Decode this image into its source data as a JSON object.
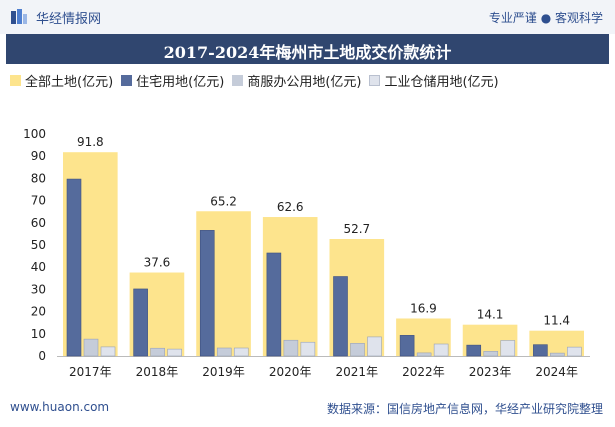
{
  "header": {
    "brand_name": "华经情报网",
    "tagline": "专业严谨 ● 客观科学",
    "logo_icon": "huajing-logo-icon"
  },
  "title": "2017-2024年梅州市土地成交价款统计",
  "legend": [
    "全部土地(亿元)",
    "住宅用地(亿元)",
    "商服办公用地(亿元)",
    "工业仓储用地(亿元)"
  ],
  "colors": {
    "total": "#fde48d",
    "residential": "#556b9c",
    "commercial": "#c5ccd9",
    "industrial": "#dfe3ec",
    "title_bar": "#30466f",
    "brand": "#2f4f8f"
  },
  "chart_data": {
    "type": "bar",
    "categories": [
      "2017年",
      "2018年",
      "2019年",
      "2020年",
      "2021年",
      "2022年",
      "2023年",
      "2024年"
    ],
    "series": [
      {
        "name": "全部土地(亿元)",
        "values": [
          91.8,
          37.6,
          65.2,
          62.6,
          52.7,
          16.9,
          14.1,
          11.4
        ]
      },
      {
        "name": "住宅用地(亿元)",
        "values": [
          79.7,
          30.2,
          56.6,
          46.4,
          35.8,
          9.3,
          4.9,
          5.1
        ]
      },
      {
        "name": "商服办公用地(亿元)",
        "values": [
          7.6,
          3.5,
          3.6,
          7.1,
          5.7,
          1.4,
          2.1,
          1.3
        ]
      },
      {
        "name": "工业仓储用地(亿元)",
        "values": [
          4.1,
          3.1,
          3.6,
          6.2,
          8.6,
          5.4,
          7.0,
          4.0
        ]
      }
    ],
    "data_labels": [
      "91.8",
      "37.6",
      "65.2",
      "62.6",
      "52.7",
      "16.9",
      "14.1",
      "11.4"
    ],
    "y_ticks": [
      "0",
      "10",
      "20",
      "30",
      "40",
      "50",
      "60",
      "70",
      "80",
      "90",
      "100"
    ],
    "ylim": [
      0,
      100
    ],
    "grid": false,
    "legend_position": "top"
  },
  "footer": {
    "website": "www.huaon.com",
    "source": "数据来源：国信房地产信息网，华经产业研究院整理"
  }
}
